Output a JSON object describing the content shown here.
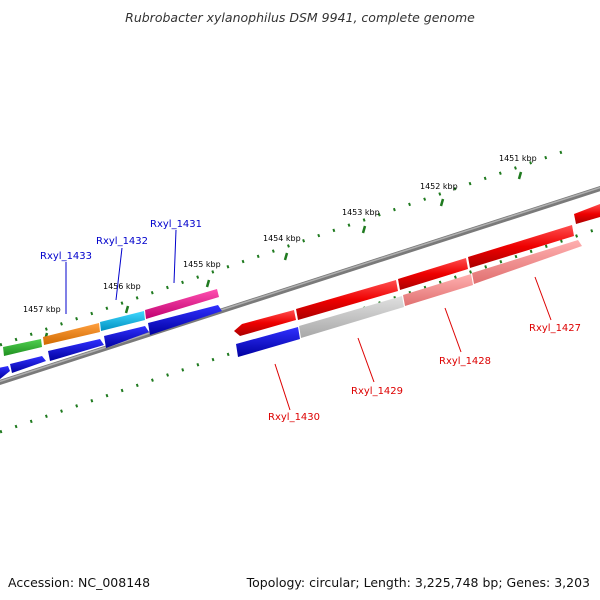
{
  "title": "Rubrobacter xylanophilus DSM 9941, complete genome",
  "footer": {
    "accession": "Accession: NC_008148",
    "summary": "Topology: circular; Length: 3,225,748 bp; Genes: 3,203"
  },
  "colors": {
    "background": "#ffffff",
    "backbone": "#808080",
    "ticks": "#1f7a1f",
    "highlight_label": "#0000cc",
    "other_label": "#dd0000"
  },
  "scale_labels": [
    "1451 kbp",
    "1452 kbp",
    "1453 kbp",
    "1454 kbp",
    "1455 kbp",
    "1456 kbp",
    "1457 kbp"
  ],
  "gene_labels": [
    {
      "text": "Rxyl_1433",
      "color": "#0000cc"
    },
    {
      "text": "Rxyl_1432",
      "color": "#0000cc"
    },
    {
      "text": "Rxyl_1431",
      "color": "#0000cc"
    },
    {
      "text": "Rxyl_1430",
      "color": "#dd0000"
    },
    {
      "text": "Rxyl_1429",
      "color": "#dd0000"
    },
    {
      "text": "Rxyl_1428",
      "color": "#dd0000"
    },
    {
      "text": "Rxyl_1427",
      "color": "#dd0000"
    }
  ]
}
